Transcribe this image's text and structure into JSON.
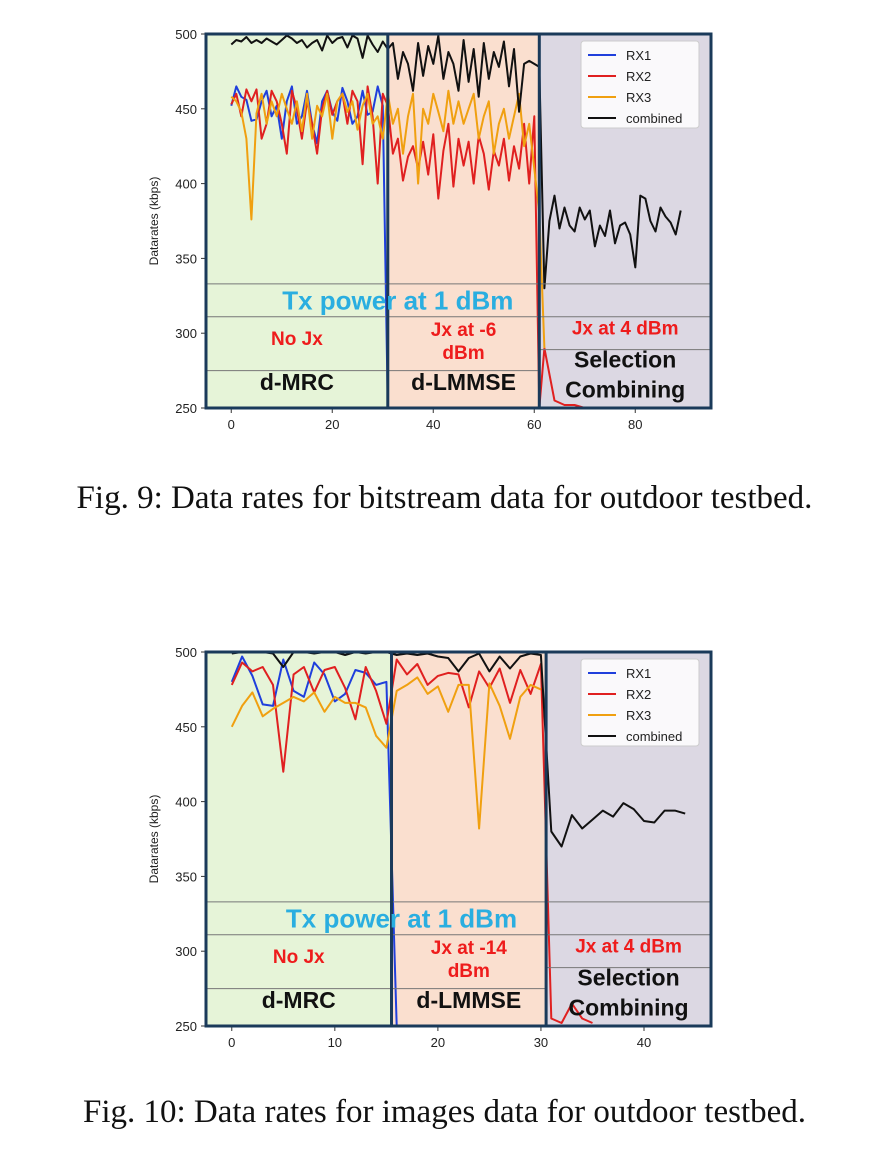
{
  "chart_data": [
    {
      "type": "line",
      "caption": "Fig. 9: Data rates for bitstream data for outdoor testbed.",
      "ylabel": "Datarates (kbps)",
      "xlabel": "",
      "xlim": [
        -5,
        95
      ],
      "ylim": [
        250,
        500
      ],
      "xticks": [
        0,
        20,
        40,
        60,
        80
      ],
      "yticks": [
        250,
        300,
        350,
        400,
        450,
        500
      ],
      "legend_position": "top-right",
      "legend": [
        "RX1",
        "RX2",
        "RX3",
        "combined"
      ],
      "colors": {
        "RX1": "#1f3fdc",
        "RX2": "#e02020",
        "RX3": "#f0a010",
        "combined": "#111111",
        "frame": "#1a3a5a",
        "title": "#2aaee0",
        "jammer": "#ee1c1c"
      },
      "regions": [
        {
          "x0": -5,
          "x1": 31,
          "color": "#e6f4d8",
          "scheme": "d-MRC",
          "jammer": "No Jx"
        },
        {
          "x0": 31,
          "x1": 61,
          "color": "#fadfcf",
          "scheme": "d-LMMSE",
          "jammer": "Jx at -6 dBm"
        },
        {
          "x0": 61,
          "x1": 95,
          "color": "#dcd8e3",
          "scheme": "Selection Combining",
          "jammer": "Jx at 4 dBm"
        }
      ],
      "annotation_title": "Tx power at 1 dBm",
      "series": [
        {
          "name": "RX1",
          "x": [
            0,
            1,
            2,
            3,
            4,
            5,
            6,
            7,
            8,
            9,
            10,
            11,
            12,
            13,
            14,
            15,
            16,
            17,
            18,
            19,
            20,
            21,
            22,
            23,
            24,
            25,
            26,
            27,
            28,
            29,
            30,
            31,
            32,
            35,
            40,
            45,
            50,
            55,
            60
          ],
          "values": [
            452,
            465,
            458,
            456,
            442,
            443,
            455,
            462,
            445,
            452,
            430,
            455,
            465,
            440,
            445,
            462,
            440,
            427,
            455,
            462,
            448,
            442,
            464,
            455,
            440,
            445,
            462,
            446,
            448,
            465,
            452,
            250,
            250,
            250,
            250,
            250,
            250,
            250,
            250
          ]
        },
        {
          "name": "RX2",
          "x": [
            0,
            1,
            2,
            3,
            4,
            5,
            6,
            7,
            8,
            9,
            10,
            11,
            12,
            13,
            14,
            15,
            16,
            17,
            18,
            19,
            20,
            21,
            22,
            23,
            24,
            25,
            26,
            27,
            28,
            29,
            30,
            31,
            32,
            33,
            34,
            35,
            36,
            37,
            38,
            39,
            40,
            41,
            42,
            43,
            44,
            45,
            46,
            47,
            48,
            49,
            50,
            51,
            52,
            53,
            54,
            55,
            56,
            57,
            58,
            59,
            60,
            61,
            62,
            64,
            66,
            68,
            70,
            72,
            74,
            76
          ],
          "values": [
            453,
            460,
            445,
            463,
            455,
            463,
            430,
            440,
            462,
            455,
            440,
            420,
            462,
            450,
            430,
            455,
            440,
            420,
            450,
            462,
            446,
            455,
            460,
            440,
            462,
            455,
            413,
            465,
            445,
            400,
            460,
            452,
            420,
            430,
            402,
            418,
            425,
            410,
            428,
            406,
            433,
            390,
            422,
            440,
            398,
            430,
            412,
            428,
            400,
            432,
            420,
            396,
            422,
            412,
            430,
            402,
            425,
            410,
            440,
            400,
            445,
            250,
            290,
            255,
            252,
            252,
            250,
            250,
            250,
            250
          ]
        },
        {
          "name": "RX3",
          "x": [
            0,
            1,
            2,
            3,
            4,
            5,
            6,
            7,
            8,
            9,
            10,
            11,
            12,
            13,
            14,
            15,
            16,
            17,
            18,
            19,
            20,
            21,
            22,
            23,
            24,
            25,
            26,
            27,
            28,
            29,
            30,
            31,
            32,
            33,
            34,
            35,
            36,
            37,
            38,
            39,
            40,
            41,
            42,
            43,
            44,
            45,
            46,
            47,
            48,
            49,
            50,
            51,
            52,
            53,
            54,
            55,
            56,
            57,
            58,
            59,
            60,
            61,
            62
          ],
          "values": [
            458,
            455,
            448,
            430,
            376,
            447,
            460,
            440,
            455,
            445,
            460,
            450,
            440,
            455,
            435,
            460,
            430,
            452,
            445,
            460,
            430,
            455,
            460,
            448,
            455,
            436,
            452,
            460,
            440,
            445,
            430,
            460,
            440,
            450,
            420,
            445,
            460,
            400,
            450,
            440,
            460,
            448,
            435,
            462,
            440,
            455,
            440,
            450,
            460,
            430,
            445,
            455,
            420,
            440,
            450,
            430,
            445,
            460,
            425,
            440,
            410,
            380,
            290
          ]
        },
        {
          "name": "combined",
          "x": [
            0,
            1,
            2,
            3,
            4,
            5,
            6,
            7,
            8,
            9,
            10,
            11,
            12,
            13,
            14,
            15,
            16,
            17,
            18,
            19,
            20,
            21,
            22,
            23,
            24,
            25,
            26,
            27,
            28,
            29,
            30,
            31,
            32,
            33,
            34,
            35,
            36,
            37,
            38,
            39,
            40,
            41,
            42,
            43,
            44,
            45,
            46,
            47,
            48,
            49,
            50,
            51,
            52,
            53,
            54,
            55,
            56,
            57,
            58,
            59,
            60,
            61,
            62,
            63,
            64,
            65,
            66,
            67,
            68,
            69,
            70,
            71,
            72,
            73,
            74,
            75,
            76,
            77,
            78,
            79,
            80,
            81,
            82,
            83,
            84,
            85,
            86,
            87,
            88,
            89
          ],
          "values": [
            493,
            496,
            495,
            498,
            494,
            496,
            494,
            497,
            495,
            493,
            496,
            499,
            497,
            494,
            496,
            491,
            494,
            496,
            489,
            499,
            494,
            497,
            498,
            491,
            499,
            497,
            484,
            499,
            493,
            488,
            495,
            490,
            494,
            470,
            488,
            480,
            462,
            494,
            472,
            492,
            480,
            499,
            470,
            488,
            480,
            462,
            496,
            468,
            490,
            458,
            494,
            470,
            488,
            478,
            495,
            465,
            490,
            448,
            480,
            482,
            480,
            478,
            330,
            375,
            392,
            370,
            384,
            372,
            368,
            384,
            376,
            382,
            358,
            372,
            365,
            382,
            360,
            372,
            374,
            366,
            344,
            392,
            390,
            375,
            368,
            384,
            378,
            374,
            366,
            382
          ]
        }
      ]
    },
    {
      "type": "line",
      "caption": "Fig. 10: Data rates for images data for outdoor testbed.",
      "ylabel": "Datarates (kbps)",
      "xlabel": "",
      "xlim": [
        -2.5,
        46.5
      ],
      "ylim": [
        250,
        500
      ],
      "xticks": [
        0,
        10,
        20,
        30,
        40
      ],
      "yticks": [
        250,
        300,
        350,
        400,
        450,
        500
      ],
      "legend_position": "top-right",
      "legend": [
        "RX1",
        "RX2",
        "RX3",
        "combined"
      ],
      "colors": {
        "RX1": "#1f3fdc",
        "RX2": "#e02020",
        "RX3": "#f0a010",
        "combined": "#111111",
        "frame": "#1a3a5a",
        "title": "#2aaee0",
        "jammer": "#ee1c1c"
      },
      "regions": [
        {
          "x0": -2.5,
          "x1": 15.5,
          "color": "#e6f4d8",
          "scheme": "d-MRC",
          "jammer": "No Jx"
        },
        {
          "x0": 15.5,
          "x1": 30.5,
          "color": "#fadfcf",
          "scheme": "d-LMMSE",
          "jammer": "Jx at -14 dBm"
        },
        {
          "x0": 30.5,
          "x1": 46.5,
          "color": "#dcd8e3",
          "scheme": "Selection Combining",
          "jammer": "Jx at 4 dBm"
        }
      ],
      "annotation_title": "Tx power at 1 dBm",
      "series": [
        {
          "name": "RX1",
          "x": [
            0,
            1,
            2,
            3,
            4,
            5,
            6,
            7,
            8,
            9,
            10,
            11,
            12,
            13,
            14,
            15,
            16,
            18,
            20,
            22,
            24,
            26,
            28,
            30
          ],
          "values": [
            480,
            497,
            484,
            465,
            464,
            495,
            474,
            470,
            493,
            485,
            467,
            472,
            488,
            486,
            478,
            480,
            250,
            250,
            250,
            250,
            250,
            250,
            250,
            250
          ]
        },
        {
          "name": "RX2",
          "x": [
            0,
            1,
            2,
            3,
            4,
            5,
            6,
            7,
            8,
            9,
            10,
            11,
            12,
            13,
            14,
            15,
            16,
            17,
            18,
            19,
            20,
            21,
            22,
            23,
            24,
            25,
            26,
            27,
            28,
            29,
            30,
            31,
            32,
            33,
            34,
            35
          ],
          "values": [
            478,
            493,
            487,
            490,
            478,
            420,
            485,
            490,
            473,
            488,
            490,
            476,
            455,
            490,
            474,
            452,
            495,
            485,
            492,
            478,
            484,
            486,
            485,
            463,
            487,
            476,
            489,
            466,
            488,
            472,
            492,
            255,
            252,
            265,
            255,
            252
          ]
        },
        {
          "name": "RX3",
          "x": [
            0,
            1,
            2,
            3,
            4,
            5,
            6,
            7,
            8,
            9,
            10,
            11,
            12,
            13,
            14,
            15,
            16,
            17,
            18,
            19,
            20,
            21,
            22,
            23,
            24,
            25,
            26,
            27,
            28,
            29,
            30
          ],
          "values": [
            450,
            464,
            473,
            457,
            462,
            466,
            470,
            467,
            473,
            460,
            470,
            466,
            466,
            463,
            444,
            436,
            474,
            478,
            483,
            472,
            477,
            460,
            478,
            478,
            382,
            479,
            464,
            442,
            470,
            478,
            475
          ]
        },
        {
          "name": "combined",
          "x": [
            0,
            1,
            2,
            3,
            4,
            5,
            6,
            7,
            8,
            9,
            10,
            11,
            12,
            13,
            14,
            15,
            16,
            17,
            18,
            19,
            20,
            21,
            22,
            23,
            24,
            25,
            26,
            27,
            28,
            29,
            30,
            31,
            32,
            33,
            34,
            35,
            36,
            37,
            38,
            39,
            40,
            41,
            42,
            43,
            44
          ],
          "values": [
            499,
            500,
            500,
            500,
            499,
            490,
            500,
            500,
            499,
            500,
            500,
            498,
            500,
            499,
            500,
            500,
            498,
            499,
            498,
            499,
            497,
            496,
            487,
            496,
            499,
            487,
            497,
            489,
            497,
            499,
            498,
            380,
            370,
            391,
            382,
            388,
            394,
            390,
            399,
            395,
            387,
            386,
            394,
            394,
            392
          ]
        }
      ]
    }
  ]
}
